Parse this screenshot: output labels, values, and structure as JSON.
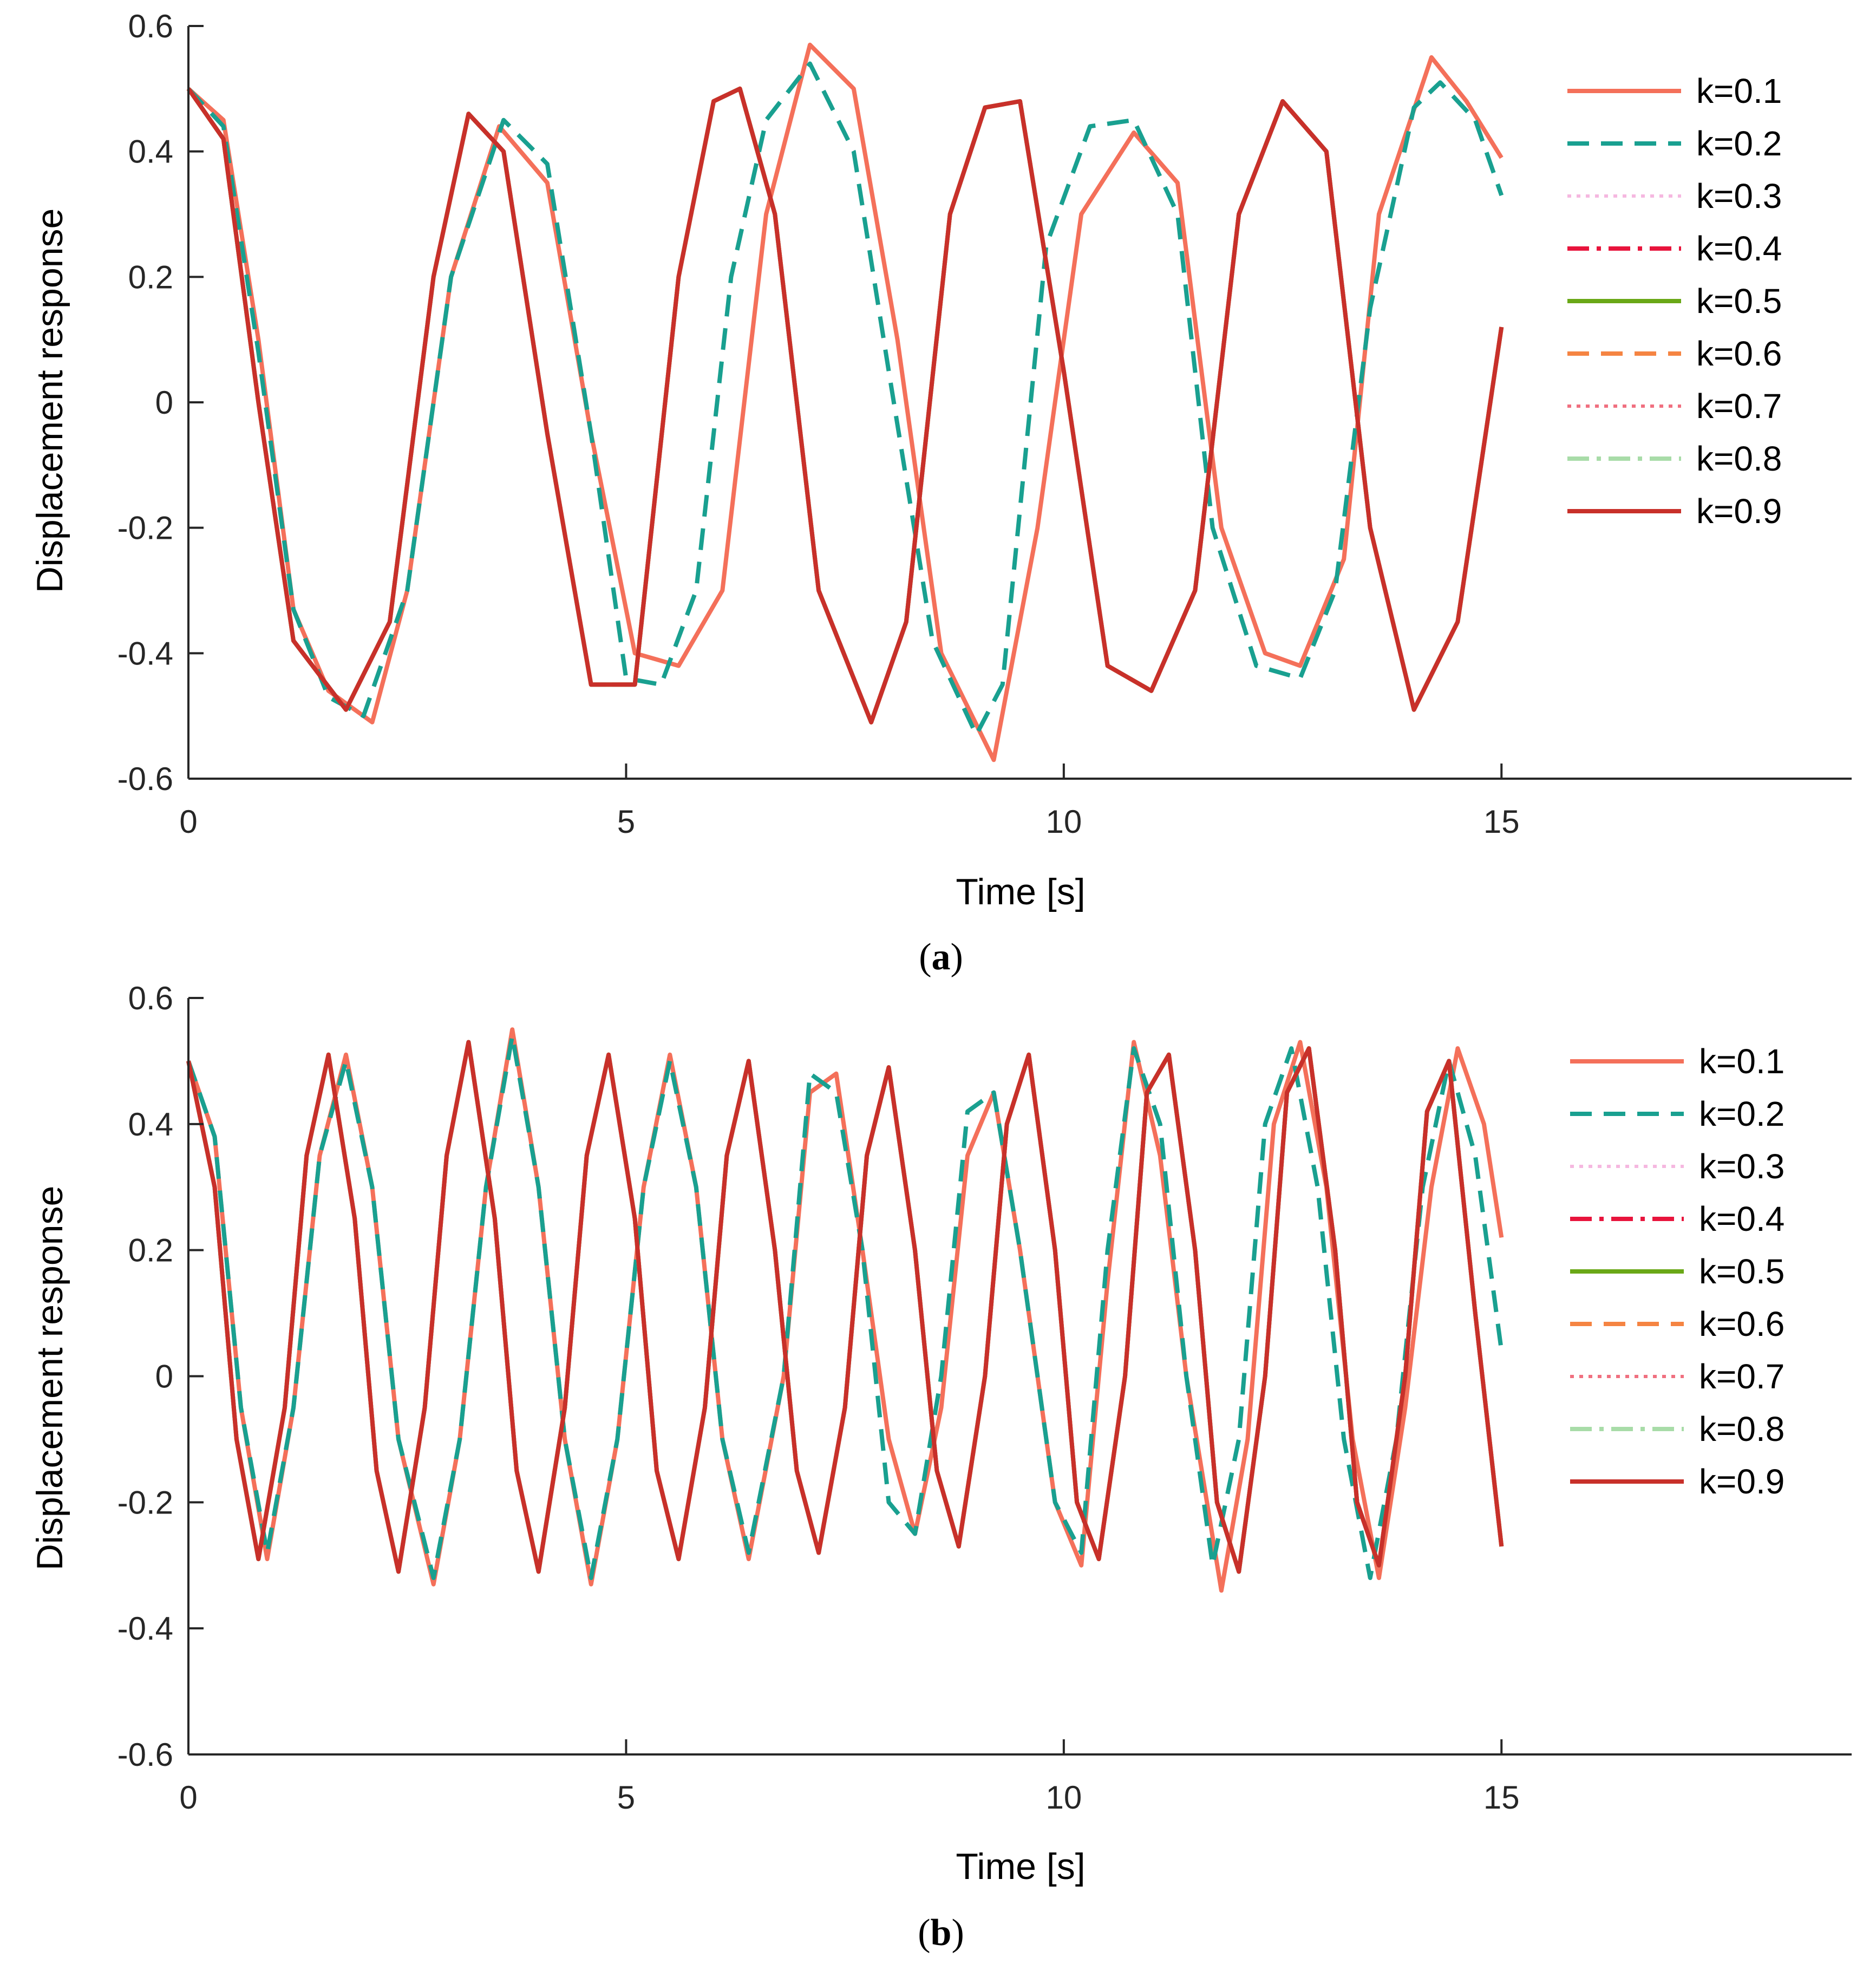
{
  "chart_data": [
    {
      "id": "a",
      "type": "line",
      "caption_letter": "a",
      "xlabel": "Time [s]",
      "ylabel": "Displacement response",
      "xlim": [
        0,
        19
      ],
      "ylim": [
        -0.6,
        0.6
      ],
      "xticks": [
        0,
        5,
        10,
        15
      ],
      "yticks": [
        -0.6,
        -0.4,
        -0.2,
        0,
        0.2,
        0.4,
        0.6
      ],
      "ytick_labels": [
        "-0.6",
        "-0.4",
        "-0.2",
        "0",
        "0.2",
        "0.4",
        "0.6"
      ],
      "legend_position": "top-right",
      "series": [
        {
          "name": "k=0.1",
          "color": "#f4705a",
          "dash": "solid",
          "x": [
            0,
            0.4,
            0.8,
            1.2,
            1.6,
            2.1,
            2.5,
            3.0,
            3.55,
            4.1,
            4.6,
            5.1,
            5.6,
            6.1,
            6.6,
            7.1,
            7.6,
            8.1,
            8.6,
            9.2,
            9.7,
            10.2,
            10.8,
            11.3,
            11.8,
            12.3,
            12.7,
            13.2,
            13.6,
            14.2,
            14.6,
            15.0
          ],
          "y": [
            0.5,
            0.45,
            0.1,
            -0.33,
            -0.46,
            -0.51,
            -0.3,
            0.2,
            0.44,
            0.35,
            -0.05,
            -0.4,
            -0.42,
            -0.3,
            0.3,
            0.57,
            0.5,
            0.1,
            -0.4,
            -0.57,
            -0.2,
            0.3,
            0.43,
            0.35,
            -0.2,
            -0.4,
            -0.42,
            -0.25,
            0.3,
            0.55,
            0.48,
            0.39
          ]
        },
        {
          "name": "k=0.2",
          "color": "#19a090",
          "dash": "dashed",
          "x": [
            0,
            0.4,
            0.8,
            1.2,
            1.6,
            2.0,
            2.5,
            3.0,
            3.6,
            4.1,
            4.6,
            5.0,
            5.4,
            5.8,
            6.2,
            6.6,
            7.1,
            7.6,
            8.0,
            8.5,
            9.0,
            9.3,
            9.8,
            10.3,
            10.8,
            11.3,
            11.7,
            12.2,
            12.7,
            13.1,
            13.5,
            14.0,
            14.3,
            14.7,
            15.0
          ],
          "y": [
            0.5,
            0.44,
            0.08,
            -0.33,
            -0.47,
            -0.5,
            -0.3,
            0.2,
            0.45,
            0.38,
            -0.05,
            -0.44,
            -0.45,
            -0.3,
            0.2,
            0.45,
            0.54,
            0.4,
            0.05,
            -0.38,
            -0.53,
            -0.45,
            0.25,
            0.44,
            0.45,
            0.3,
            -0.2,
            -0.42,
            -0.44,
            -0.3,
            0.15,
            0.47,
            0.51,
            0.45,
            0.33
          ]
        },
        {
          "name": "k=0.3",
          "color": "#f5b8e0",
          "dash": "dotted",
          "same_as": "k=0.9"
        },
        {
          "name": "k=0.4",
          "color": "#e8143c",
          "dash": "dashdot",
          "same_as": "k=0.9"
        },
        {
          "name": "k=0.5",
          "color": "#6aa817",
          "dash": "solid",
          "same_as": "k=0.9"
        },
        {
          "name": "k=0.6",
          "color": "#f58442",
          "dash": "dashed",
          "same_as": "k=0.9"
        },
        {
          "name": "k=0.7",
          "color": "#f07080",
          "dash": "dotted",
          "same_as": "k=0.9"
        },
        {
          "name": "k=0.8",
          "color": "#a8dca8",
          "dash": "dashdot",
          "same_as": "k=0.9"
        },
        {
          "name": "k=0.9",
          "color": "#c8302a",
          "dash": "solid",
          "x": [
            0,
            0.4,
            0.8,
            1.2,
            1.8,
            2.3,
            2.8,
            3.2,
            3.6,
            4.1,
            4.6,
            5.1,
            5.6,
            6.0,
            6.3,
            6.7,
            7.2,
            7.8,
            8.2,
            8.7,
            9.1,
            9.5,
            10.0,
            10.5,
            11.0,
            11.5,
            12.0,
            12.5,
            13.0,
            13.5,
            14.0,
            14.5,
            15.0
          ],
          "y": [
            0.5,
            0.42,
            0.0,
            -0.38,
            -0.49,
            -0.35,
            0.2,
            0.46,
            0.4,
            -0.05,
            -0.45,
            -0.45,
            0.2,
            0.48,
            0.5,
            0.3,
            -0.3,
            -0.51,
            -0.35,
            0.3,
            0.47,
            0.48,
            0.05,
            -0.42,
            -0.46,
            -0.3,
            0.3,
            0.48,
            0.4,
            -0.2,
            -0.49,
            -0.35,
            0.12
          ]
        }
      ]
    },
    {
      "id": "b",
      "type": "line",
      "caption_letter": "b",
      "xlabel": "Time [s]",
      "ylabel": "Displacement response",
      "xlim": [
        0,
        19
      ],
      "ylim": [
        -0.6,
        0.6
      ],
      "xticks": [
        0,
        5,
        10,
        15
      ],
      "yticks": [
        -0.6,
        -0.4,
        -0.2,
        0,
        0.2,
        0.4,
        0.6
      ],
      "ytick_labels": [
        "-0.6",
        "-0.4",
        "-0.2",
        "0",
        "0.2",
        "0.4",
        "0.6"
      ],
      "legend_position": "top-right",
      "series": [
        {
          "name": "k=0.1",
          "color": "#f4705a",
          "dash": "solid",
          "x": [
            0,
            0.3,
            0.6,
            0.9,
            1.2,
            1.5,
            1.8,
            2.1,
            2.4,
            2.8,
            3.1,
            3.4,
            3.7,
            4.0,
            4.3,
            4.6,
            4.9,
            5.2,
            5.5,
            5.8,
            6.1,
            6.4,
            6.8,
            7.1,
            7.4,
            7.7,
            8.0,
            8.3,
            8.6,
            8.9,
            9.2,
            9.5,
            9.9,
            10.2,
            10.5,
            10.8,
            11.1,
            11.4,
            11.8,
            12.1,
            12.4,
            12.7,
            13.0,
            13.3,
            13.6,
            13.9,
            14.2,
            14.5,
            14.8,
            15.0
          ],
          "y": [
            0.5,
            0.38,
            -0.05,
            -0.29,
            -0.05,
            0.35,
            0.51,
            0.3,
            -0.1,
            -0.33,
            -0.1,
            0.3,
            0.55,
            0.3,
            -0.1,
            -0.33,
            -0.1,
            0.3,
            0.51,
            0.3,
            -0.1,
            -0.29,
            0.0,
            0.45,
            0.48,
            0.2,
            -0.1,
            -0.25,
            -0.05,
            0.35,
            0.45,
            0.2,
            -0.2,
            -0.3,
            0.15,
            0.53,
            0.35,
            0.0,
            -0.34,
            -0.1,
            0.4,
            0.53,
            0.3,
            -0.1,
            -0.32,
            -0.05,
            0.3,
            0.52,
            0.4,
            0.22
          ]
        },
        {
          "name": "k=0.2",
          "color": "#19a090",
          "dash": "dashed",
          "x": [
            0,
            0.3,
            0.6,
            0.9,
            1.2,
            1.5,
            1.8,
            2.1,
            2.4,
            2.8,
            3.1,
            3.4,
            3.7,
            4.0,
            4.3,
            4.6,
            4.9,
            5.2,
            5.5,
            5.8,
            6.1,
            6.4,
            6.8,
            7.1,
            7.4,
            7.7,
            8.0,
            8.3,
            8.6,
            8.9,
            9.2,
            9.5,
            9.9,
            10.2,
            10.5,
            10.8,
            11.1,
            11.4,
            11.7,
            12.0,
            12.3,
            12.6,
            12.9,
            13.2,
            13.5,
            13.8,
            14.1,
            14.4,
            14.7,
            15.0
          ],
          "y": [
            0.5,
            0.38,
            -0.05,
            -0.28,
            -0.05,
            0.35,
            0.5,
            0.3,
            -0.1,
            -0.32,
            -0.1,
            0.3,
            0.54,
            0.3,
            -0.1,
            -0.32,
            -0.1,
            0.3,
            0.5,
            0.3,
            -0.1,
            -0.28,
            0.0,
            0.48,
            0.45,
            0.2,
            -0.2,
            -0.25,
            0.0,
            0.42,
            0.45,
            0.2,
            -0.2,
            -0.28,
            0.2,
            0.52,
            0.4,
            0.0,
            -0.3,
            -0.1,
            0.4,
            0.52,
            0.3,
            -0.1,
            -0.32,
            -0.1,
            0.3,
            0.5,
            0.35,
            0.04
          ]
        },
        {
          "name": "k=0.3",
          "color": "#f5b8e0",
          "dash": "dotted",
          "same_as": "k=0.9"
        },
        {
          "name": "k=0.4",
          "color": "#e8143c",
          "dash": "dashdot",
          "same_as": "k=0.9"
        },
        {
          "name": "k=0.5",
          "color": "#6aa817",
          "dash": "solid",
          "same_as": "k=0.9"
        },
        {
          "name": "k=0.6",
          "color": "#f58442",
          "dash": "dashed",
          "same_as": "k=0.9"
        },
        {
          "name": "k=0.7",
          "color": "#f07080",
          "dash": "dotted",
          "same_as": "k=0.9"
        },
        {
          "name": "k=0.8",
          "color": "#a8dca8",
          "dash": "dashdot",
          "same_as": "k=0.9"
        },
        {
          "name": "k=0.9",
          "color": "#c8302a",
          "dash": "solid",
          "x": [
            0,
            0.3,
            0.55,
            0.8,
            1.1,
            1.35,
            1.6,
            1.9,
            2.15,
            2.4,
            2.7,
            2.95,
            3.2,
            3.5,
            3.75,
            4.0,
            4.3,
            4.55,
            4.8,
            5.1,
            5.35,
            5.6,
            5.9,
            6.15,
            6.4,
            6.7,
            6.95,
            7.2,
            7.5,
            7.75,
            8.0,
            8.3,
            8.55,
            8.8,
            9.1,
            9.35,
            9.6,
            9.9,
            10.15,
            10.4,
            10.7,
            10.95,
            11.2,
            11.5,
            11.75,
            12.0,
            12.3,
            12.55,
            12.8,
            13.1,
            13.35,
            13.6,
            13.9,
            14.15,
            14.4,
            14.7,
            15.0
          ],
          "y": [
            0.5,
            0.3,
            -0.1,
            -0.29,
            -0.05,
            0.35,
            0.51,
            0.25,
            -0.15,
            -0.31,
            -0.05,
            0.35,
            0.53,
            0.25,
            -0.15,
            -0.31,
            -0.05,
            0.35,
            0.51,
            0.25,
            -0.15,
            -0.29,
            -0.05,
            0.35,
            0.5,
            0.2,
            -0.15,
            -0.28,
            -0.05,
            0.35,
            0.49,
            0.2,
            -0.15,
            -0.27,
            0.0,
            0.4,
            0.51,
            0.2,
            -0.2,
            -0.29,
            0.0,
            0.45,
            0.51,
            0.2,
            -0.2,
            -0.31,
            0.0,
            0.45,
            0.52,
            0.2,
            -0.2,
            -0.3,
            0.0,
            0.42,
            0.5,
            0.1,
            -0.27
          ]
        }
      ]
    }
  ]
}
